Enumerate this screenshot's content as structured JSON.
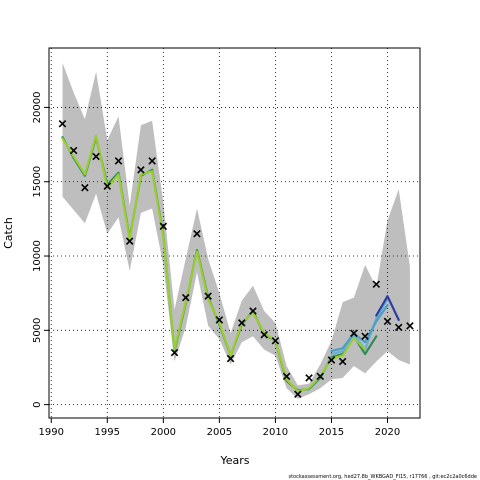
{
  "chart_data": {
    "type": "line",
    "xlabel": "Years",
    "ylabel": "Catch",
    "xlim": [
      1989.8,
      2022.9
    ],
    "ylim": [
      -900,
      24000
    ],
    "x_ticks": [
      1990,
      1995,
      2000,
      2005,
      2010,
      2015,
      2020
    ],
    "y_ticks": [
      0,
      5000,
      10000,
      15000,
      20000
    ],
    "grid": true,
    "source_text": "stockassessment.org, hed27.8b_WKBGAD_Fl15, r17766 , git:ec2c2a0c6dde",
    "observed_catch": {
      "x": [
        1991,
        1992,
        1993,
        1994,
        1995,
        1996,
        1997,
        1998,
        1999,
        2000,
        2001,
        2002,
        2003,
        2004,
        2005,
        2006,
        2007,
        2008,
        2009,
        2010,
        2011,
        2012,
        2013,
        2014,
        2015,
        2016,
        2017,
        2018,
        2019,
        2020,
        2021,
        2022
      ],
      "y": [
        18900,
        17100,
        14600,
        16700,
        14700,
        16400,
        11000,
        15800,
        16400,
        12000,
        3500,
        7200,
        11500,
        7300,
        5700,
        3100,
        5500,
        6300,
        4700,
        4300,
        1900,
        700,
        1800,
        1900,
        3000,
        2900,
        4800,
        4600,
        8100,
        5600,
        5200,
        5300
      ]
    },
    "confidence_band": {
      "x": [
        1991,
        1992,
        1993,
        1994,
        1995,
        1996,
        1997,
        1998,
        1999,
        2000,
        2001,
        2002,
        2003,
        2004,
        2005,
        2006,
        2007,
        2008,
        2009,
        2010,
        2011,
        2012,
        2013,
        2014,
        2015,
        2016,
        2017,
        2018,
        2019,
        2020,
        2021,
        2022
      ],
      "upper": [
        23000,
        21000,
        19200,
        22400,
        17800,
        19400,
        13400,
        18800,
        19100,
        13600,
        6400,
        9800,
        13200,
        9800,
        7500,
        4800,
        7000,
        8000,
        6300,
        5500,
        2600,
        1300,
        1400,
        2700,
        4300,
        6900,
        7200,
        9400,
        7900,
        12400,
        14500,
        9300
      ],
      "lower": [
        14000,
        13100,
        12200,
        14200,
        11500,
        12600,
        9000,
        12900,
        13200,
        9400,
        2900,
        5200,
        8900,
        5300,
        4400,
        2700,
        4200,
        4600,
        3700,
        3300,
        1100,
        400,
        700,
        1100,
        1700,
        1800,
        2600,
        2100,
        2900,
        3600,
        3000,
        2700
      ]
    },
    "series": [
      {
        "name": "",
        "color": "#2e8b57",
        "x": [
          1991,
          1992,
          1993,
          1994,
          1995,
          1996,
          1997,
          1998,
          1999,
          2000,
          2001,
          2002,
          2003,
          2004,
          2005,
          2006,
          2007,
          2008,
          2009,
          2010,
          2011,
          2012,
          2013,
          2014,
          2015,
          2016,
          2017,
          2018,
          2019
        ],
        "y": [
          18000,
          16600,
          15400,
          18000,
          14800,
          15600,
          11200,
          15400,
          15800,
          11400,
          3600,
          6800,
          10400,
          7200,
          5400,
          3300,
          5400,
          6300,
          4700,
          4300,
          1600,
          950,
          1050,
          1800,
          3200,
          3400,
          4600,
          3400,
          4600
        ]
      },
      {
        "name": "",
        "color": "#6aaed6",
        "x": [
          2015,
          2016,
          2017,
          2018,
          2019,
          2020
        ],
        "y": [
          3400,
          3600,
          4700,
          3700,
          5800,
          7100
        ]
      },
      {
        "name": "",
        "color": "#4a9fc6",
        "x": [
          2015,
          2016,
          2017,
          2018,
          2019,
          2020
        ],
        "y": [
          3600,
          3800,
          4800,
          4200,
          5600,
          6700
        ]
      },
      {
        "name": "",
        "color": "#2c3e9f",
        "x": [
          2019,
          2020,
          2021
        ],
        "y": [
          6000,
          7300,
          5700
        ]
      },
      {
        "name": "",
        "color": "#9acd32",
        "x": [
          1991,
          1992,
          1993,
          1994,
          1995,
          1996,
          1997,
          1998,
          1999,
          2000,
          2001,
          2002,
          2003,
          2004,
          2005,
          2006,
          2007,
          2008,
          2009,
          2010,
          2011,
          2012,
          2013,
          2014,
          2015,
          2016,
          2017,
          2018
        ],
        "y": [
          17900,
          16700,
          15500,
          18100,
          14600,
          15500,
          11100,
          15500,
          15700,
          11300,
          3700,
          6900,
          10300,
          7100,
          5500,
          3300,
          5500,
          6200,
          4800,
          4300,
          1700,
          900,
          1100,
          1900,
          3100,
          3300,
          4500,
          3700
        ]
      }
    ]
  }
}
